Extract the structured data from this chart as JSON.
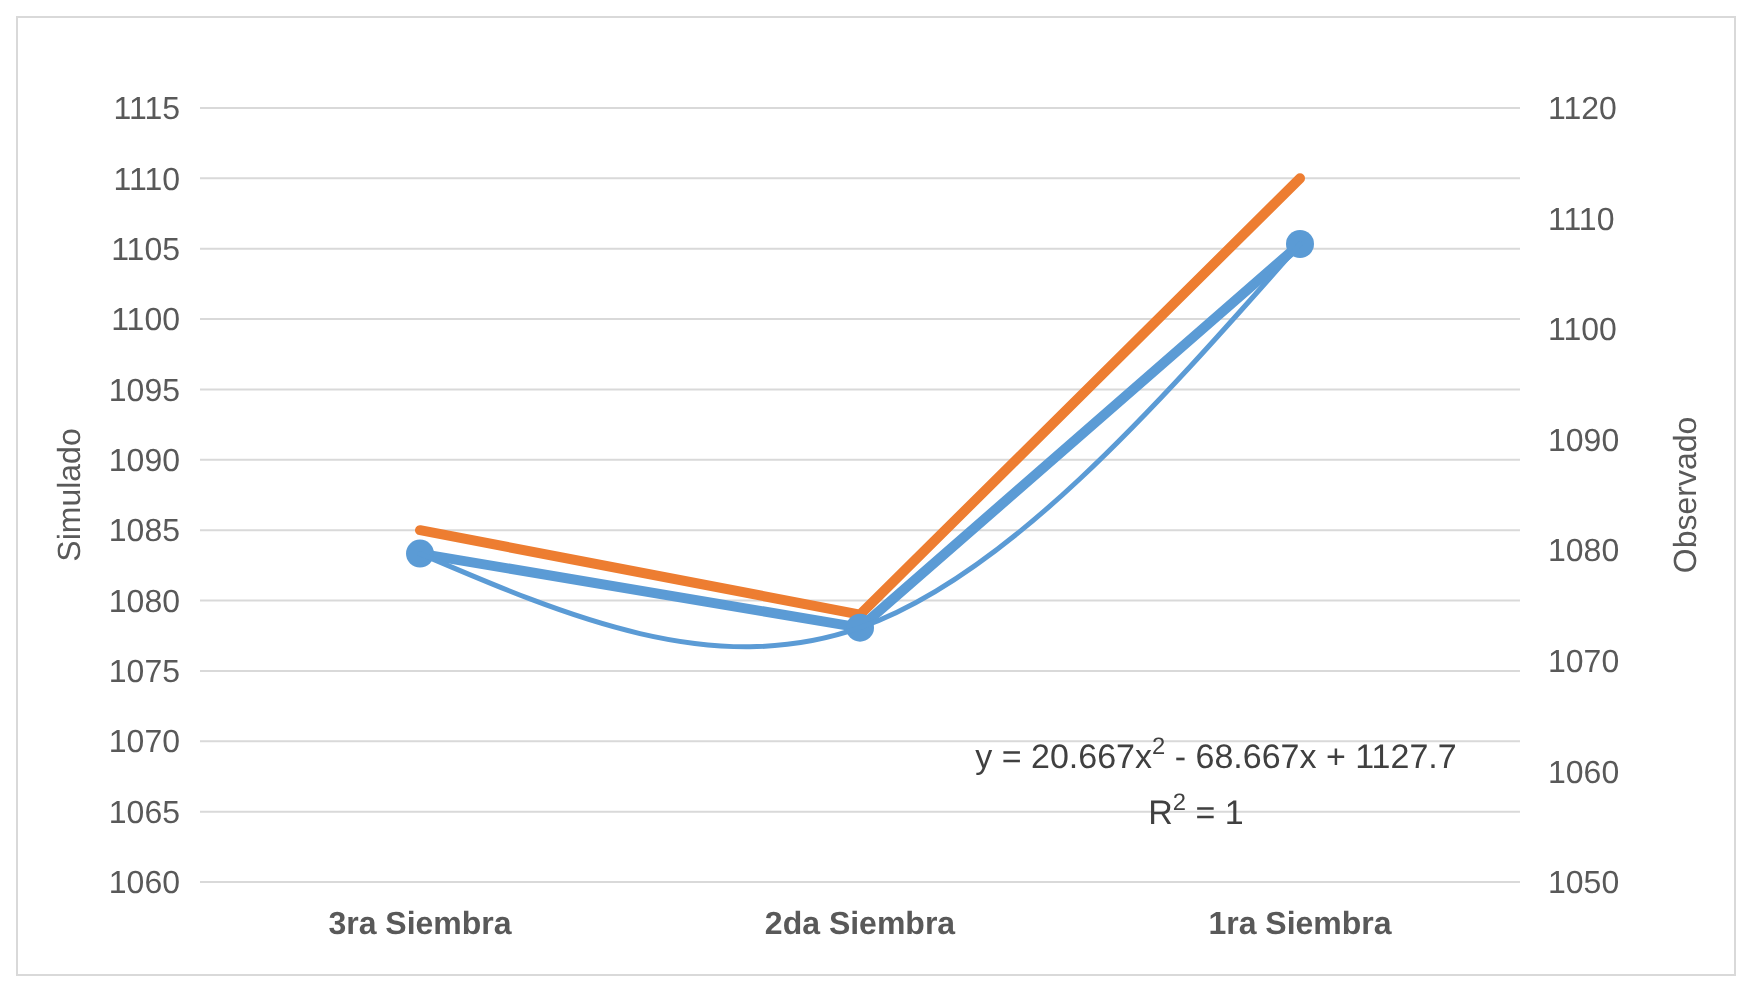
{
  "chart_data": {
    "type": "line",
    "categories": [
      "3ra Siembra",
      "2da Siembra",
      "1ra Siembra"
    ],
    "ylabel": "Simulado",
    "y2label": "Observado",
    "series": [
      {
        "color": "#ed7d31",
        "values": [
          1085,
          1079,
          1110
        ],
        "marker": "none"
      },
      {
        "color": "#5b9bd5",
        "values": [
          1079.7,
          1073,
          1107.7
        ],
        "axis": "y2",
        "marker": "circle"
      },
      {
        "type": "line",
        "color": "#5b9bd5",
        "axis": "y2",
        "values": [
          1079.7,
          1073,
          1107.7
        ],
        "marker": "none"
      }
    ],
    "ylim": [
      1060,
      1115
    ],
    "yticks": [
      1060,
      1065,
      1070,
      1075,
      1080,
      1085,
      1090,
      1095,
      1100,
      1105,
      1110,
      1115
    ],
    "y2lim": [
      1050,
      1120
    ],
    "y2ticks": [
      1050,
      1060,
      1070,
      1080,
      1090,
      1100,
      1110,
      1120
    ],
    "grid": "y",
    "annotations": [
      "y = 20.667x$^{2}$ - 68.667x + 1127.7",
      "R$^{2}$ = 1"
    ]
  }
}
